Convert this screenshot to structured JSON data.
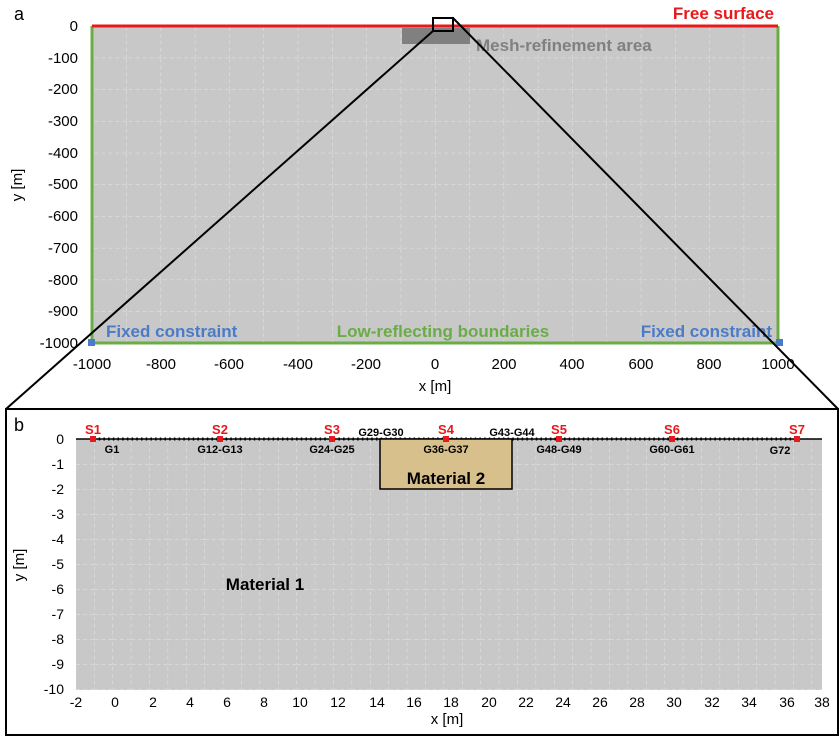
{
  "panel_a": {
    "letter": "a",
    "labels": {
      "free_surface": "Free surface",
      "mesh_refinement": "Mesh-refinement area",
      "fixed_left": "Fixed constraint",
      "fixed_right": "Fixed constraint",
      "low_reflecting": "Low-reflecting boundaries"
    },
    "axes": {
      "xlabel": "x [m]",
      "ylabel": "y [m]",
      "xticks": [
        "-1000",
        "-800",
        "-600",
        "-400",
        "-200",
        "0",
        "200",
        "400",
        "600",
        "800",
        "1000"
      ],
      "yticks": [
        "0",
        "-100",
        "-200",
        "-300",
        "-400",
        "-500",
        "-600",
        "-700",
        "-800",
        "-900",
        "-1000"
      ]
    },
    "colors": {
      "free_surface": "#e8191c",
      "boundary": "#6aac46",
      "fixed": "#4b7bc8",
      "domain": "#c8c8c8",
      "refinement": "#808080"
    }
  },
  "panel_b": {
    "letter": "b",
    "axes": {
      "xlabel": "x [m]",
      "ylabel": "y [m]",
      "xticks": [
        "-2",
        "0",
        "2",
        "4",
        "6",
        "8",
        "10",
        "12",
        "14",
        "16",
        "18",
        "20",
        "22",
        "24",
        "26",
        "28",
        "30",
        "32",
        "34",
        "36",
        "38"
      ],
      "yticks": [
        "0",
        "-1",
        "-2",
        "-3",
        "-4",
        "-5",
        "-6",
        "-7",
        "-8",
        "-9",
        "-10"
      ]
    },
    "stations": [
      "S1",
      "S2",
      "S3",
      "S4",
      "S5",
      "S6",
      "S7"
    ],
    "geophone_labels": {
      "g1": "G1",
      "g12_13": "G12-G13",
      "g24_25": "G24-G25",
      "g29_30": "G29-G30",
      "g36_37": "G36-G37",
      "g43_44": "G43-G44",
      "g48_49": "G48-G49",
      "g60_61": "G60-G61",
      "g72": "G72"
    },
    "materials": {
      "material_1": "Material 1",
      "material_2": "Material 2"
    },
    "colors": {
      "domain": "#c8c8c8",
      "material_2": "#d8c08c",
      "station": "#e8191c"
    }
  }
}
